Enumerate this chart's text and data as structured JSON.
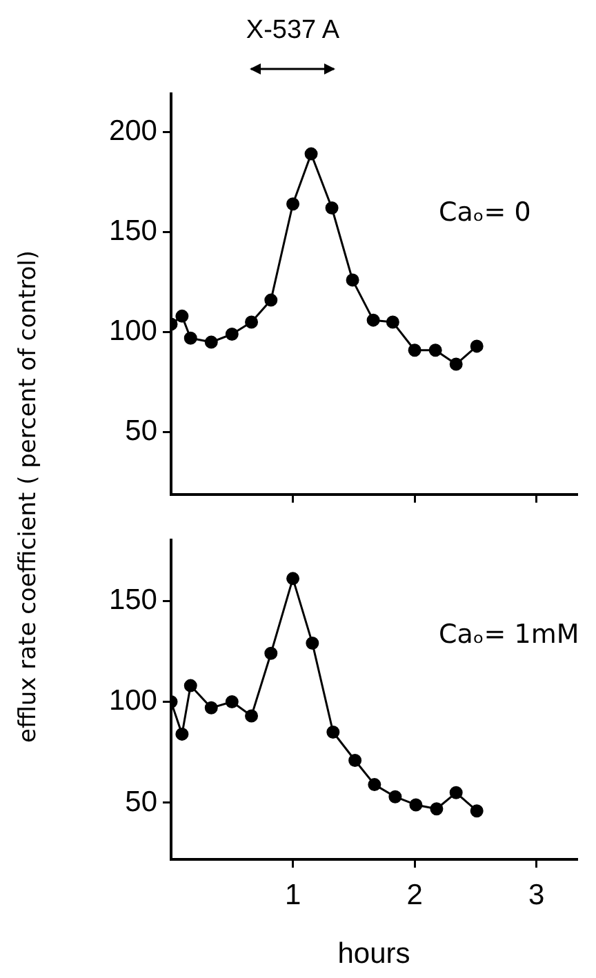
{
  "chart_data": [
    {
      "type": "line",
      "ylabel": "efflux rate coefficient ( percent of control)",
      "x": [
        0,
        0.09,
        0.16,
        0.33,
        0.5,
        0.66,
        0.82,
        1.0,
        1.15,
        1.32,
        1.49,
        1.66,
        1.82,
        2.0,
        2.17,
        2.34,
        2.51
      ],
      "series": [
        {
          "color": "#000000",
          "values": [
            104,
            108,
            97,
            95,
            99,
            105,
            116,
            164,
            189,
            162,
            126,
            106,
            105,
            91,
            91,
            84,
            93
          ]
        }
      ],
      "xlim": [
        0,
        3.33
      ],
      "xticks": [
        1,
        2,
        3
      ],
      "ylim": [
        19,
        219
      ],
      "yticks": [
        50,
        100,
        150,
        200
      ],
      "tick_labels": "y",
      "marker": "circle",
      "line_style": "solid",
      "annotations": [
        "X-537 A",
        "Caₒ= 0"
      ]
    },
    {
      "type": "line",
      "xlabel": "hours",
      "x": [
        0,
        0.09,
        0.16,
        0.33,
        0.5,
        0.66,
        0.82,
        1.0,
        1.16,
        1.33,
        1.51,
        1.67,
        1.84,
        2.01,
        2.18,
        2.34,
        2.51
      ],
      "series": [
        {
          "color": "#000000",
          "values": [
            100,
            84,
            108,
            97,
            100,
            93,
            124,
            161,
            129,
            85,
            71,
            59,
            53,
            49,
            47,
            55,
            46
          ]
        }
      ],
      "xlim": [
        0,
        3.33
      ],
      "xticks": [
        1,
        2,
        3
      ],
      "ylim": [
        22,
        180
      ],
      "yticks": [
        50,
        100,
        150
      ],
      "marker": "circle",
      "line_style": "solid",
      "annotations": [
        "Caₒ= 1mM"
      ]
    }
  ]
}
